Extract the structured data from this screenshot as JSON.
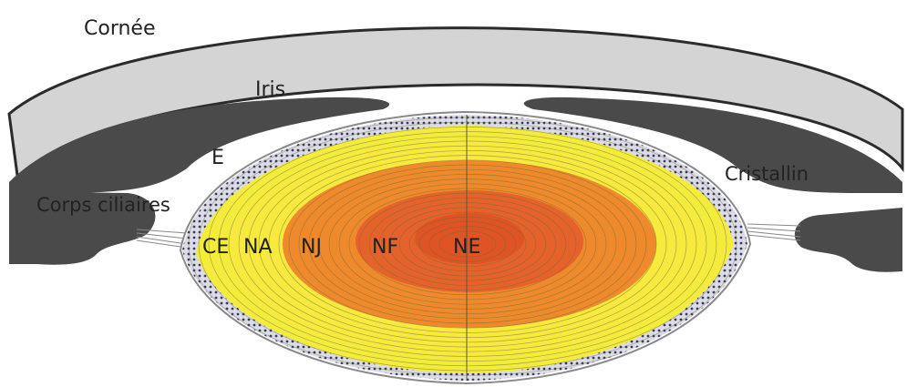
{
  "labels": {
    "cornea": "Cornée",
    "iris": "Iris",
    "epithelium": "E",
    "ciliary_bodies": "Corps ciliaires",
    "lens": "Cristallin",
    "cortex": "CE",
    "adult_nucleus": "NA",
    "juvenile_nucleus": "NJ",
    "fetal_nucleus": "NF",
    "embryonic_nucleus": "NE"
  },
  "colors": {
    "cornea_fill": "#d4d4d4",
    "cornea_outline": "#2b2b2b",
    "iris_fill": "#4a4a4a",
    "lens_outer": "#f4ec3c",
    "lens_yellow": "#f7e93d",
    "juvenile": "#ef8a2c",
    "fetal": "#e5632a",
    "embryonic": "#d9481f",
    "fiber_lines": "#6b6b3a"
  }
}
